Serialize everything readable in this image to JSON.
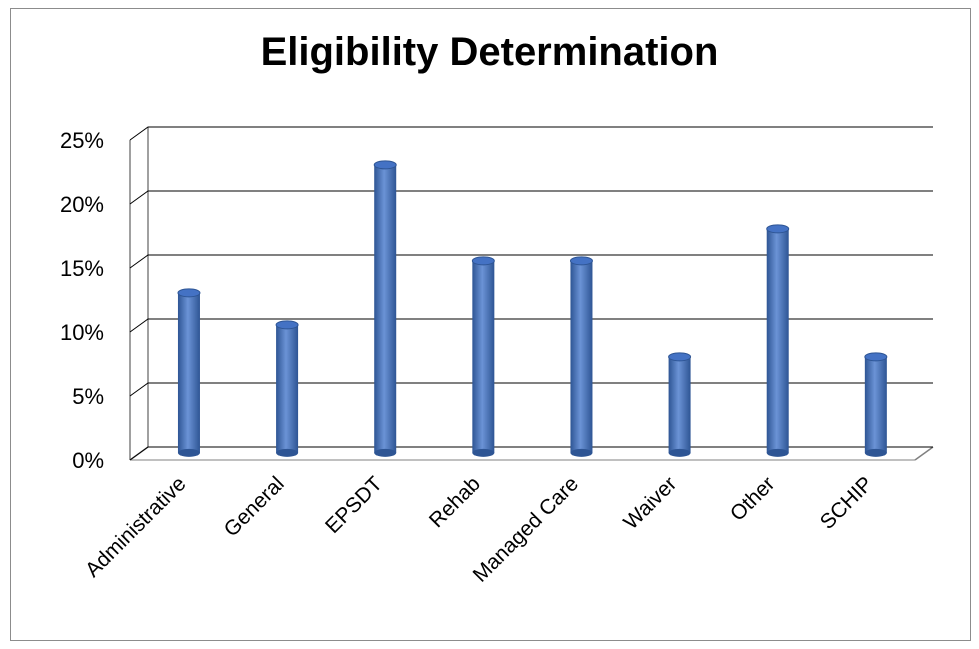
{
  "chart_data": {
    "type": "bar",
    "title": "Eligibility Determination",
    "xlabel": "",
    "ylabel": "",
    "categories": [
      "Administrative",
      "General",
      "EPSDT",
      "Rehab",
      "Managed Care",
      "Waiver",
      "Other",
      "SCHIP"
    ],
    "values": [
      12.5,
      10,
      22.5,
      15,
      15,
      7.5,
      17.5,
      7.5
    ],
    "ylim": [
      0,
      25
    ],
    "yticks": [
      "0%",
      "5%",
      "10%",
      "15%",
      "20%",
      "25%"
    ],
    "grid": true,
    "legend": "none",
    "bar_color": "#4472C4",
    "bar_dark": "#2E5594",
    "bar_light": "#6B93D6"
  }
}
